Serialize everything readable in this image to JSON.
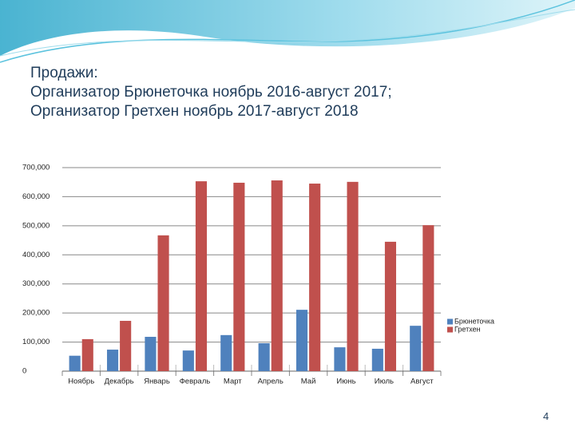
{
  "slide": {
    "title_lines": [
      "Продажи:",
      "Организатор Брюнеточка ноябрь 2016-август 2017;",
      "Организатор Гретхен ноябрь 2017-август 2018"
    ],
    "page_number": "4"
  },
  "chart_data": {
    "type": "bar",
    "categories": [
      "Ноябрь",
      "Декабрь",
      "Январь",
      "Февраль",
      "Март",
      "Апрель",
      "Май",
      "Июнь",
      "Июль",
      "Август"
    ],
    "series": [
      {
        "name": "Брюнеточка",
        "color": "#4f81bd",
        "values": [
          53000,
          74000,
          118000,
          71000,
          124000,
          96000,
          211000,
          82000,
          77000,
          156000
        ]
      },
      {
        "name": "Гретхен",
        "color": "#c0504d",
        "values": [
          110000,
          173000,
          467000,
          653000,
          648000,
          656000,
          645000,
          651000,
          445000,
          502000
        ]
      }
    ],
    "ylim": [
      0,
      700000
    ],
    "yticks": [
      0,
      {
        "value": 100000,
        "label": "100,000"
      },
      {
        "value": 200000,
        "label": "200,000"
      },
      {
        "value": 300000,
        "label": "300,000"
      },
      {
        "value": 400000,
        "label": "400,000"
      },
      {
        "value": 500000,
        "label": "500,000"
      },
      {
        "value": 600000,
        "label": "600,000"
      },
      {
        "value": 700000,
        "label": "700,000"
      }
    ],
    "grid": true,
    "legend": "right"
  }
}
